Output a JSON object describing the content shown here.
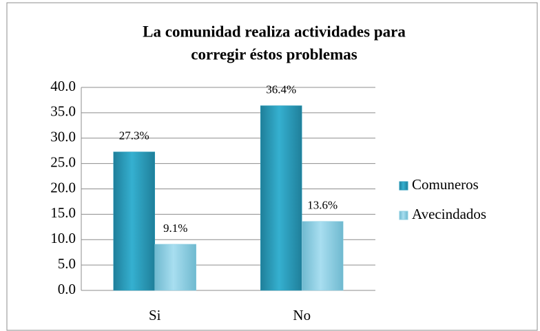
{
  "chart_data": {
    "type": "bar",
    "title": [
      "La comunidad realiza actividades para",
      "corregir éstos problemas"
    ],
    "categories": [
      "Si",
      "No"
    ],
    "series": [
      {
        "name": "Comuneros",
        "color": "#2b9ebd",
        "values": [
          27.3,
          36.4
        ],
        "value_labels": [
          "27.3%",
          "36.4%"
        ]
      },
      {
        "name": "Avecindados",
        "color": "#8ccfe2",
        "values": [
          9.1,
          13.6
        ],
        "value_labels": [
          "9.1%",
          "13.6%"
        ]
      }
    ],
    "ylim": [
      0,
      40
    ],
    "yticks": [
      {
        "value": 0,
        "label": "0.0"
      },
      {
        "value": 5,
        "label": "5.0"
      },
      {
        "value": 10,
        "label": "10.0"
      },
      {
        "value": 15,
        "label": "15.0"
      },
      {
        "value": 20,
        "label": "20.0"
      },
      {
        "value": 25,
        "label": "25.0"
      },
      {
        "value": 30,
        "label": "30.0"
      },
      {
        "value": 35,
        "label": "35.0"
      },
      {
        "value": 40,
        "label": "40.0"
      }
    ],
    "grid": true,
    "legend": "right"
  }
}
